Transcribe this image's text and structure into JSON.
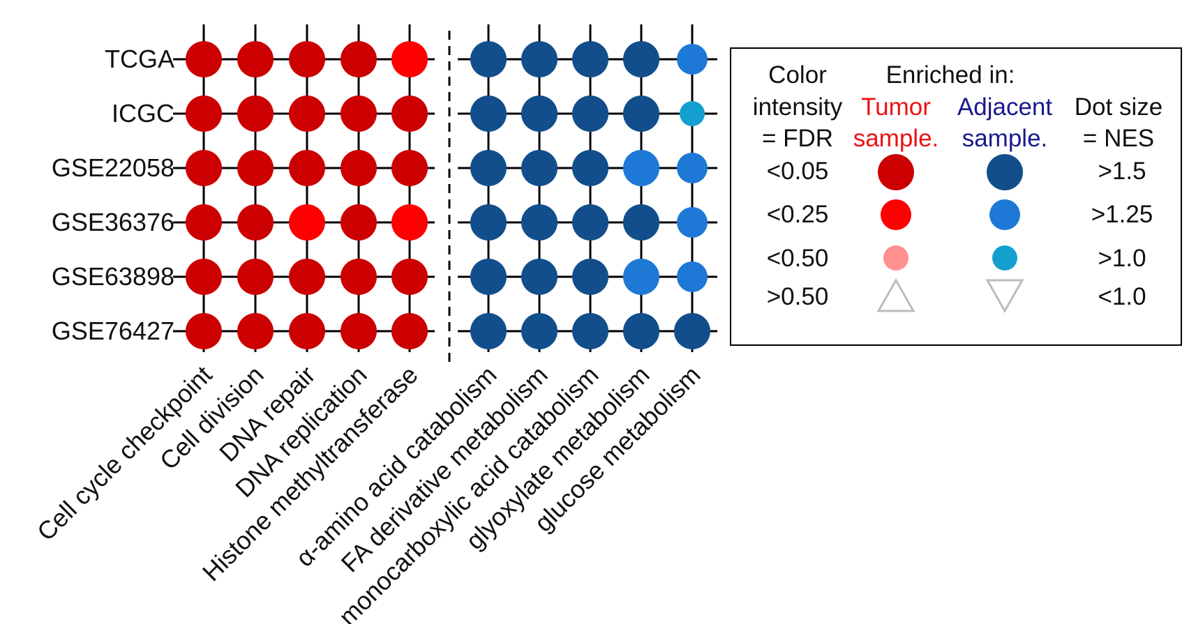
{
  "chart_data": {
    "type": "dot-matrix",
    "rows": [
      "TCGA",
      "ICGC",
      "GSE22058",
      "GSE36376",
      "GSE63898",
      "GSE76427"
    ],
    "columns": [
      "Cell cycle checkpoint",
      "Cell division",
      "DNA repair",
      "DNA replication",
      "Histone methyltransferase",
      "α-amino acid catabolism",
      "FA derivative metabolism",
      "monocarboxylic acid catabolism",
      "glyoxylate metabolism",
      "glucose metabolism"
    ],
    "column_group": [
      "tumor",
      "tumor",
      "tumor",
      "tumor",
      "tumor",
      "adjacent",
      "adjacent",
      "adjacent",
      "adjacent",
      "adjacent"
    ],
    "fdr_level": [
      [
        0,
        0,
        0,
        0,
        1,
        0,
        0,
        0,
        0,
        1
      ],
      [
        0,
        0,
        0,
        0,
        0,
        0,
        0,
        0,
        0,
        2
      ],
      [
        0,
        0,
        0,
        0,
        0,
        0,
        0,
        0,
        1,
        1
      ],
      [
        0,
        0,
        1,
        0,
        1,
        0,
        0,
        0,
        0,
        1
      ],
      [
        0,
        0,
        0,
        0,
        0,
        0,
        0,
        0,
        1,
        1
      ],
      [
        0,
        0,
        0,
        0,
        0,
        0,
        0,
        0,
        0,
        0
      ]
    ],
    "nes_level": [
      [
        0,
        0,
        0,
        0,
        0,
        0,
        0,
        0,
        0,
        1
      ],
      [
        0,
        0,
        0,
        0,
        0,
        0,
        0,
        0,
        0,
        2
      ],
      [
        0,
        0,
        0,
        0,
        0,
        0,
        0,
        0,
        0,
        1
      ],
      [
        0,
        0,
        0,
        0,
        0,
        0,
        0,
        0,
        0,
        1
      ],
      [
        0,
        0,
        0,
        0,
        0,
        0,
        0,
        0,
        0,
        1
      ],
      [
        0,
        0,
        0,
        0,
        0,
        0,
        0,
        0,
        0,
        0
      ]
    ],
    "grid": true,
    "separator": "dashed"
  },
  "legend": {
    "header_color_1": "Color",
    "header_color_2": "intensity",
    "header_color_3": "= FDR",
    "header_enriched": "Enriched in:",
    "tumor_1": "Tumor",
    "tumor_2": "sample.",
    "adjacent_1": "Adjacent",
    "adjacent_2": "sample.",
    "header_size_1": "Dot size",
    "header_size_2": "= NES",
    "fdr_labels": [
      "<0.05",
      "<0.25",
      "<0.50",
      ">0.50"
    ],
    "nes_labels": [
      ">1.5",
      ">1.25",
      ">1.0",
      "<1.0"
    ]
  },
  "colors": {
    "tumor": [
      "#cc0000",
      "#ff0000",
      "#ff9090"
    ],
    "adjacent": [
      "#124e8c",
      "#1e78d6",
      "#14a0cf"
    ],
    "none": "#bbbbbb",
    "grid": "#000000"
  }
}
